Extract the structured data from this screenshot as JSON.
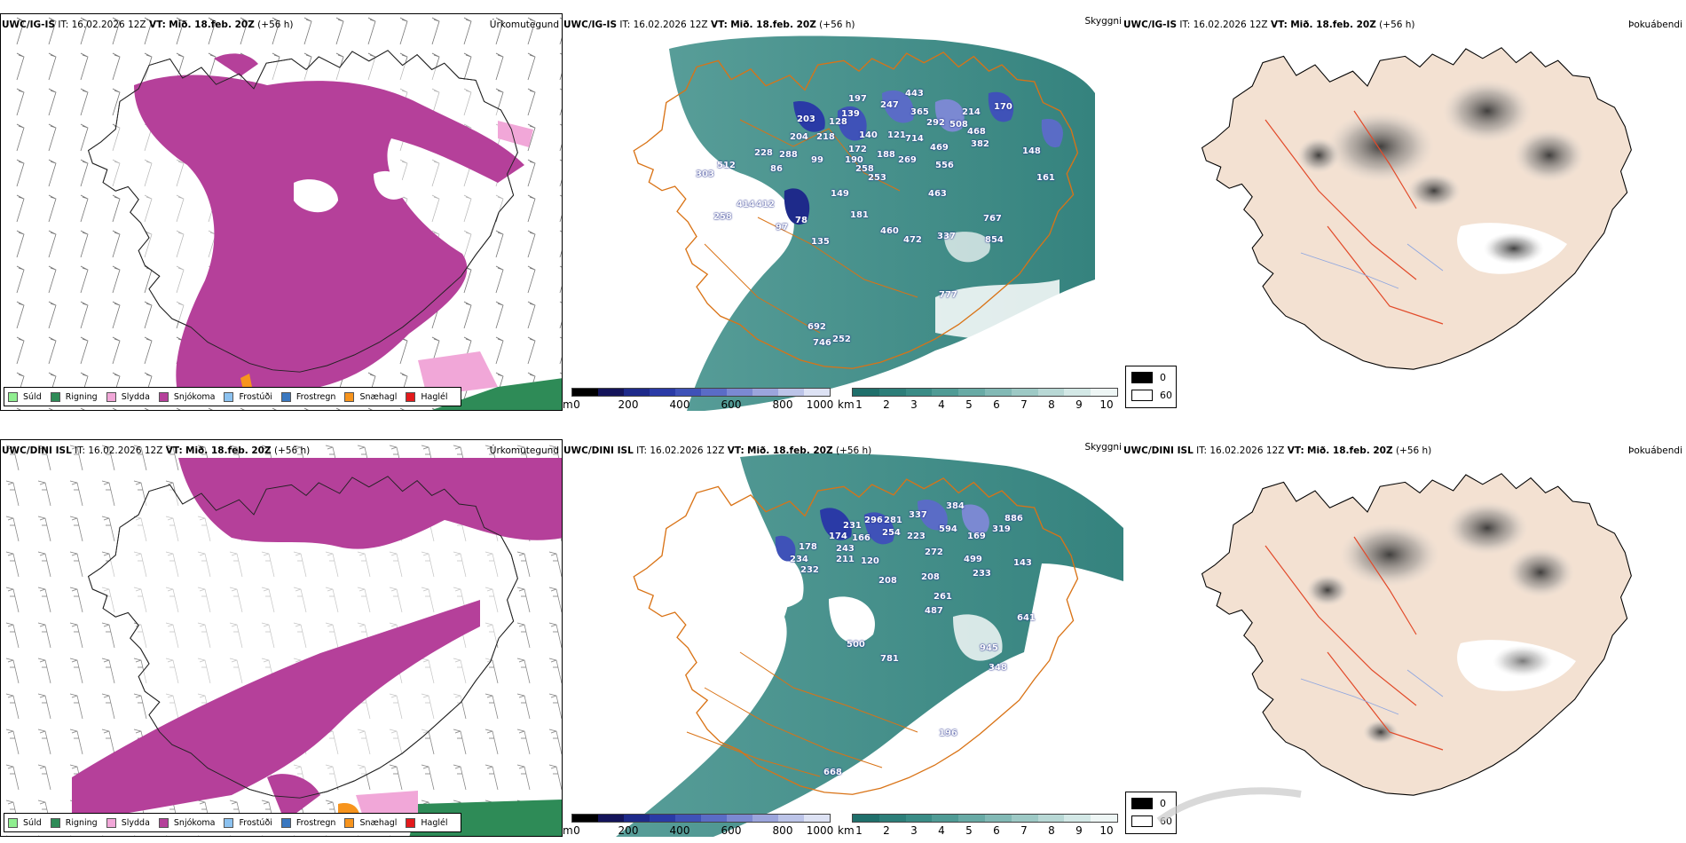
{
  "rows": [
    {
      "model": "UWC/IG-IS",
      "it_label": "IT:",
      "it_value": "16.02.2026 12Z",
      "vt_label": "VT:",
      "vt_value": "Mið. 18.feb. 20Z",
      "lead": "(+56 h)"
    },
    {
      "model": "UWC/DINI ISL",
      "it_label": "IT:",
      "it_value": "16.02.2026 12Z",
      "vt_label": "VT:",
      "vt_value": "Mið. 18.feb. 20Z",
      "lead": "(+56 h)"
    }
  ],
  "params": {
    "precip_type": "Úrkomutegund",
    "visibility": "Skyggni",
    "fog": "Þokuábendi"
  },
  "precip_legend": [
    {
      "label": "Súld",
      "color": "#90ee90"
    },
    {
      "label": "Rigning",
      "color": "#2e8b57"
    },
    {
      "label": "Slydda",
      "color": "#f1a7d8"
    },
    {
      "label": "Snjókoma",
      "color": "#b5409a"
    },
    {
      "label": "Frostúði",
      "color": "#8cc2f0"
    },
    {
      "label": "Frostregn",
      "color": "#3a78c0"
    },
    {
      "label": "Snæhagl",
      "color": "#f7941d"
    },
    {
      "label": "Haglél",
      "color": "#e31a1c"
    }
  ],
  "height_bar": {
    "unit": "m",
    "ticks": [
      "0",
      "200",
      "400",
      "600",
      "800",
      "1000"
    ],
    "colors": [
      "#000000",
      "#14145a",
      "#1e2a8a",
      "#2a3aa6",
      "#3f52b8",
      "#5a6cc6",
      "#7b89d2",
      "#9ba5dc",
      "#bcc4e8",
      "#dde2f4"
    ]
  },
  "vis_bar": {
    "unit": "km",
    "ticks": [
      "1",
      "2",
      "3",
      "4",
      "5",
      "6",
      "7",
      "8",
      "9",
      "10"
    ],
    "colors": [
      "#1f6f6b",
      "#2c7e79",
      "#3a8c86",
      "#4f9b95",
      "#68aaa5",
      "#82b9b5",
      "#9dc9c5",
      "#b8d8d5",
      "#d3e8e6",
      "#eef6f5"
    ]
  },
  "cloud_legend": {
    "top": "0",
    "bottom": "60"
  },
  "height_labels": [
    [
      {
        "v": "443"
      },
      {
        "v": "197"
      },
      {
        "v": "247"
      },
      {
        "v": "365"
      },
      {
        "v": "170"
      },
      {
        "v": "214"
      },
      {
        "v": "292"
      },
      {
        "v": "508"
      },
      {
        "v": "468"
      },
      {
        "v": "382"
      },
      {
        "v": "203"
      },
      {
        "v": "139"
      },
      {
        "v": "128"
      },
      {
        "v": "218"
      },
      {
        "v": "204"
      },
      {
        "v": "140"
      },
      {
        "v": "121"
      },
      {
        "v": "714"
      },
      {
        "v": "469"
      },
      {
        "v": "228"
      },
      {
        "v": "288"
      },
      {
        "v": "172"
      },
      {
        "v": "188"
      },
      {
        "v": "269"
      },
      {
        "v": "556"
      },
      {
        "v": "512"
      },
      {
        "v": "86"
      },
      {
        "v": "99"
      },
      {
        "v": "190"
      },
      {
        "v": "258"
      },
      {
        "v": "253"
      },
      {
        "v": "303"
      },
      {
        "v": "149"
      },
      {
        "v": "463"
      },
      {
        "v": "414"
      },
      {
        "v": "412"
      },
      {
        "v": "181"
      },
      {
        "v": "258"
      },
      {
        "v": "78"
      },
      {
        "v": "97"
      },
      {
        "v": "460"
      },
      {
        "v": "472"
      },
      {
        "v": "337"
      },
      {
        "v": "767"
      },
      {
        "v": "854"
      },
      {
        "v": "777"
      },
      {
        "v": "692"
      },
      {
        "v": "746"
      },
      {
        "v": "252"
      },
      {
        "v": "148"
      },
      {
        "v": "161"
      },
      {
        "v": "135"
      }
    ],
    [
      {
        "v": "384"
      },
      {
        "v": "886"
      },
      {
        "v": "337"
      },
      {
        "v": "296"
      },
      {
        "v": "281"
      },
      {
        "v": "231"
      },
      {
        "v": "594"
      },
      {
        "v": "319"
      },
      {
        "v": "174"
      },
      {
        "v": "166"
      },
      {
        "v": "254"
      },
      {
        "v": "223"
      },
      {
        "v": "169"
      },
      {
        "v": "178"
      },
      {
        "v": "243"
      },
      {
        "v": "272"
      },
      {
        "v": "234"
      },
      {
        "v": "211"
      },
      {
        "v": "120"
      },
      {
        "v": "499"
      },
      {
        "v": "232"
      },
      {
        "v": "208"
      },
      {
        "v": "233"
      },
      {
        "v": "143"
      },
      {
        "v": "208"
      },
      {
        "v": "261"
      },
      {
        "v": "487"
      },
      {
        "v": "641"
      },
      {
        "v": "945"
      },
      {
        "v": "781"
      },
      {
        "v": "348"
      },
      {
        "v": "196"
      },
      {
        "v": "668"
      },
      {
        "v": "500"
      }
    ]
  ]
}
